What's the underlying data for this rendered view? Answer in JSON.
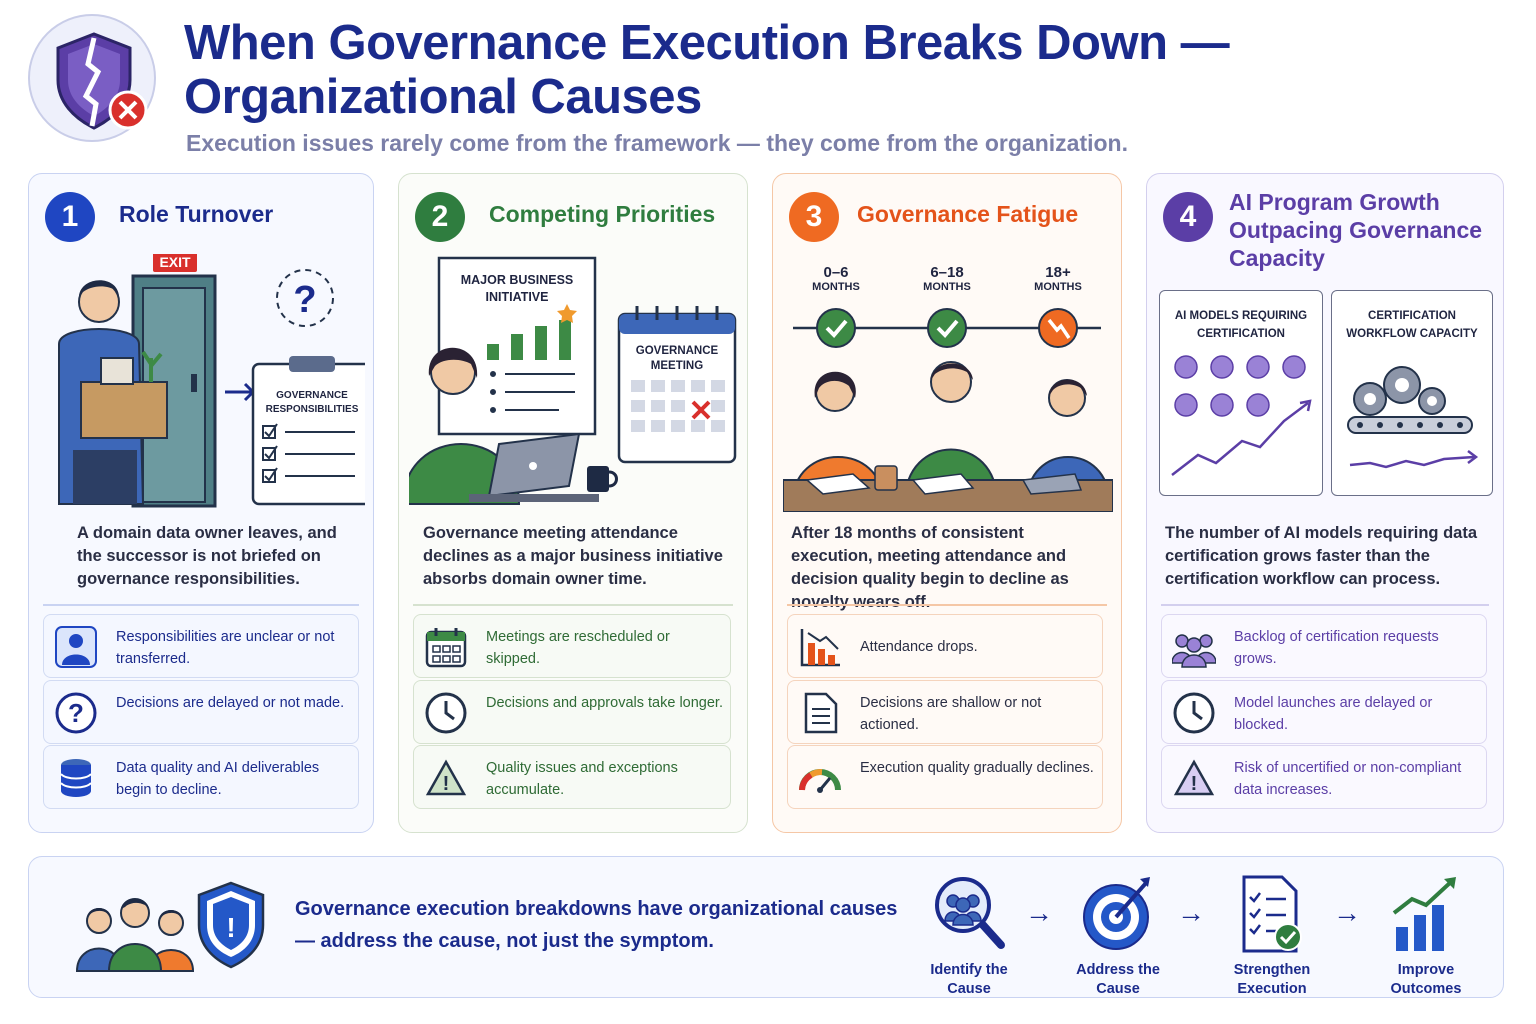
{
  "header": {
    "title": "When Governance Execution Breaks Down — Organizational Causes",
    "subtitle": "Execution issues rarely come from the framework — they come from the organization."
  },
  "cards": [
    {
      "number": "1",
      "title": "Role Turnover",
      "accent": "#1f46c2",
      "illustration": {
        "exit_sign": "EXIT",
        "clipboard_title": "GOVERNANCE RESPONSIBILITIES"
      },
      "description": "A domain data owner leaves, and the successor is not briefed on governance responsibilities.",
      "items": [
        {
          "icon": "person-icon",
          "text": "Responsibilities are unclear or not transferred."
        },
        {
          "icon": "question-icon",
          "text": "Decisions are delayed or not made."
        },
        {
          "icon": "database-icon",
          "text": "Data quality and AI deliverables begin to decline."
        }
      ]
    },
    {
      "number": "2",
      "title": "Competing Priorities",
      "accent": "#2f7d3f",
      "illustration": {
        "board_title": "MAJOR BUSINESS INITIATIVE",
        "calendar_title": "GOVERNANCE MEETING"
      },
      "description": "Governance meeting attendance declines as a major business initiative absorbs domain owner time.",
      "items": [
        {
          "icon": "calendar-icon",
          "text": "Meetings are rescheduled or skipped."
        },
        {
          "icon": "clock-icon",
          "text": "Decisions and approvals take longer."
        },
        {
          "icon": "warning-icon",
          "text": "Quality issues and exceptions accumulate."
        }
      ]
    },
    {
      "number": "3",
      "title": "Governance Fatigue",
      "accent": "#ef6a22",
      "timeline": [
        {
          "label": "0–6",
          "unit": "MONTHS",
          "status": "ok"
        },
        {
          "label": "6–18",
          "unit": "MONTHS",
          "status": "ok"
        },
        {
          "label": "18+",
          "unit": "MONTHS",
          "status": "decline"
        }
      ],
      "description": "After 18 months of consistent execution, meeting attendance and decision quality begin to decline as novelty wears off.",
      "items": [
        {
          "icon": "declining-chart-icon",
          "text": "Attendance drops."
        },
        {
          "icon": "document-icon",
          "text": "Decisions are shallow or not actioned."
        },
        {
          "icon": "gauge-icon",
          "text": "Execution quality gradually declines."
        }
      ]
    },
    {
      "number": "4",
      "title": "AI Program Growth Outpacing Governance Capacity",
      "accent": "#5b3ea6",
      "illustration": {
        "panel_left": "AI MODELS REQUIRING CERTIFICATION",
        "panel_right": "CERTIFICATION WORKFLOW CAPACITY"
      },
      "description": "The number of AI models requiring data certification grows faster than the certification workflow can process.",
      "items": [
        {
          "icon": "group-icon",
          "text": "Backlog of certification requests grows."
        },
        {
          "icon": "clock-icon",
          "text": "Model launches are delayed or blocked."
        },
        {
          "icon": "warning-icon",
          "text": "Risk of uncertified or non-compliant data increases."
        }
      ]
    }
  ],
  "footer": {
    "message": "Governance execution breakdowns have organizational causes — address the cause, not just the symptom.",
    "steps": [
      {
        "icon": "magnifier-people-icon",
        "label": "Identify the Cause"
      },
      {
        "icon": "target-icon",
        "label": "Address the Cause"
      },
      {
        "icon": "checklist-icon",
        "label": "Strengthen Execution"
      },
      {
        "icon": "growth-chart-icon",
        "label": "Improve Outcomes"
      }
    ]
  },
  "colors": {
    "navy": "#1b2b8c",
    "blue": "#1f46c2",
    "green": "#2f7d3f",
    "orange": "#ef6a22",
    "purple": "#5b3ea6"
  }
}
